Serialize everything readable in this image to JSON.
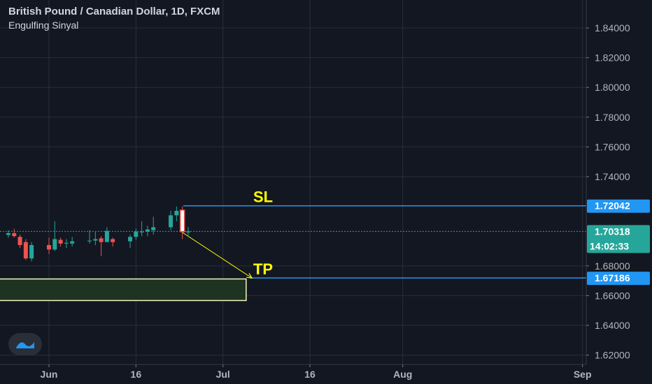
{
  "header": {
    "symbol": "British Pound / Canadian Dollar, 1D, FXCM",
    "indicator": "Engulfing Sinyal"
  },
  "colors": {
    "background": "#131722",
    "grid": "#2a2e39",
    "text": "#b2b5be",
    "up": "#26a69a",
    "down": "#ef5350",
    "level_line": "#2196f3",
    "current_price": "#26a69a",
    "annotation": "#ffff00",
    "zone_border": "#f0f8c0",
    "zone_fill": "#1e3320"
  },
  "chart_data": {
    "type": "candlestick",
    "symbol": "GBPCAD",
    "timeframe": "1D",
    "source": "FXCM",
    "y_axis": {
      "range": [
        1.612,
        1.858
      ],
      "ticks": [
        "1.84000",
        "1.82000",
        "1.80000",
        "1.78000",
        "1.76000",
        "1.74000",
        "1.68000",
        "1.66000",
        "1.64000",
        "1.62000"
      ]
    },
    "x_axis": {
      "labels": [
        {
          "label": "Jun",
          "date": "2020-06-01"
        },
        {
          "label": "16",
          "date": "2020-06-16"
        },
        {
          "label": "Jul",
          "date": "2020-07-01"
        },
        {
          "label": "16",
          "date": "2020-07-16"
        },
        {
          "label": "Aug",
          "date": "2020-08-01"
        },
        {
          "label": "Sep",
          "date": "2020-09-01"
        }
      ]
    },
    "candles": [
      {
        "date": "2020-05-22",
        "o": 1.7035,
        "h": 1.708,
        "l": 1.6995,
        "c": 1.7005
      },
      {
        "date": "2020-05-25",
        "o": 1.7008,
        "h": 1.704,
        "l": 1.699,
        "c": 1.702
      },
      {
        "date": "2020-05-26",
        "o": 1.702,
        "h": 1.705,
        "l": 1.699,
        "c": 1.7
      },
      {
        "date": "2020-05-27",
        "o": 1.6995,
        "h": 1.701,
        "l": 1.692,
        "c": 1.694
      },
      {
        "date": "2020-05-28",
        "o": 1.696,
        "h": 1.698,
        "l": 1.684,
        "c": 1.685
      },
      {
        "date": "2020-05-29",
        "o": 1.685,
        "h": 1.696,
        "l": 1.683,
        "c": 1.694
      },
      {
        "date": "2020-06-01",
        "o": 1.694,
        "h": 1.699,
        "l": 1.688,
        "c": 1.691
      },
      {
        "date": "2020-06-02",
        "o": 1.691,
        "h": 1.71,
        "l": 1.69,
        "c": 1.698
      },
      {
        "date": "2020-06-03",
        "o": 1.6975,
        "h": 1.699,
        "l": 1.693,
        "c": 1.695
      },
      {
        "date": "2020-06-04",
        "o": 1.695,
        "h": 1.698,
        "l": 1.692,
        "c": 1.6955
      },
      {
        "date": "2020-06-05",
        "o": 1.695,
        "h": 1.6995,
        "l": 1.693,
        "c": 1.6965
      },
      {
        "date": "2020-06-08",
        "o": 1.6965,
        "h": 1.704,
        "l": 1.695,
        "c": 1.697
      },
      {
        "date": "2020-06-09",
        "o": 1.697,
        "h": 1.703,
        "l": 1.694,
        "c": 1.698
      },
      {
        "date": "2020-06-10",
        "o": 1.6985,
        "h": 1.7,
        "l": 1.6865,
        "c": 1.696
      },
      {
        "date": "2020-06-11",
        "o": 1.696,
        "h": 1.706,
        "l": 1.696,
        "c": 1.7035
      },
      {
        "date": "2020-06-12",
        "o": 1.698,
        "h": 1.699,
        "l": 1.693,
        "c": 1.696
      },
      {
        "date": "2020-06-15",
        "o": 1.6965,
        "h": 1.701,
        "l": 1.692,
        "c": 1.6995
      },
      {
        "date": "2020-06-16",
        "o": 1.6995,
        "h": 1.705,
        "l": 1.6975,
        "c": 1.703
      },
      {
        "date": "2020-06-17",
        "o": 1.703,
        "h": 1.71,
        "l": 1.7,
        "c": 1.703
      },
      {
        "date": "2020-06-18",
        "o": 1.703,
        "h": 1.707,
        "l": 1.7,
        "c": 1.7045
      },
      {
        "date": "2020-06-19",
        "o": 1.704,
        "h": 1.713,
        "l": 1.701,
        "c": 1.706
      },
      {
        "date": "2020-06-22",
        "o": 1.706,
        "h": 1.717,
        "l": 1.704,
        "c": 1.714
      },
      {
        "date": "2020-06-23",
        "o": 1.714,
        "h": 1.72,
        "l": 1.71,
        "c": 1.717
      },
      {
        "date": "2020-06-24",
        "o": 1.7175,
        "h": 1.72,
        "l": 1.698,
        "c": 1.703
      },
      {
        "date": "2020-06-25",
        "o": 1.7025,
        "h": 1.706,
        "l": 1.7005,
        "c": 1.7032
      }
    ],
    "levels": [
      {
        "name": "SL",
        "value": 1.72042,
        "label": "SL",
        "price_label": "1.72042"
      },
      {
        "name": "TP",
        "value": 1.67186,
        "label": "TP",
        "price_label": "1.67186"
      }
    ],
    "current_price": {
      "value": 1.70318,
      "price_label": "1.70318",
      "countdown": "14:02:33"
    },
    "target_zone": {
      "top": 1.6712,
      "bottom": 1.6567,
      "start_date": "2020-05-22",
      "end_date": "2020-07-05"
    },
    "arrow": {
      "from": {
        "date": "2020-06-24",
        "value": 1.7025
      },
      "to": {
        "date": "2020-07-06",
        "value": 1.6718
      }
    }
  }
}
